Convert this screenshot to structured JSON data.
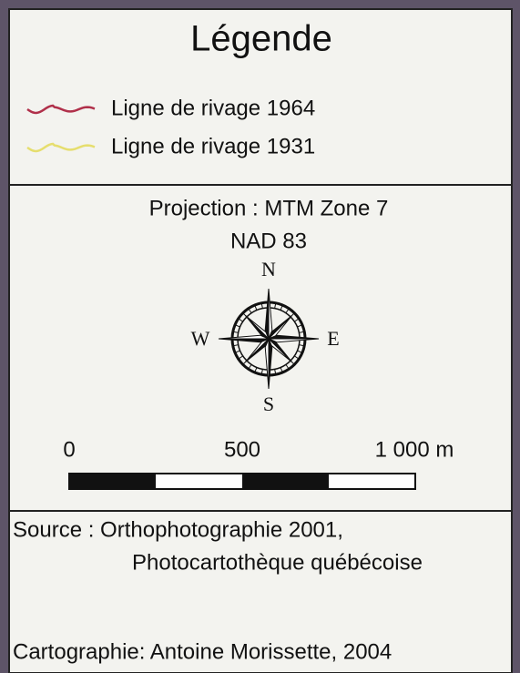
{
  "title": "Légende",
  "legend": {
    "items": [
      {
        "label": "Ligne de rivage 1964",
        "color": "#b0304a"
      },
      {
        "label": "Ligne de rivage 1931",
        "color": "#e6de6e"
      }
    ]
  },
  "projection": [
    "Projection : MTM Zone 7",
    "NAD 83"
  ],
  "compass": {
    "north": "N",
    "east": "E",
    "south": "S",
    "west": "W"
  },
  "scale_bar": {
    "labels": [
      "0",
      "500",
      "1 000 m"
    ]
  },
  "source": [
    "Source : Orthophotographie 2001,",
    "Photocartothèque québécoise"
  ],
  "credit": "Cartographie: Antoine Morissette, 2004"
}
